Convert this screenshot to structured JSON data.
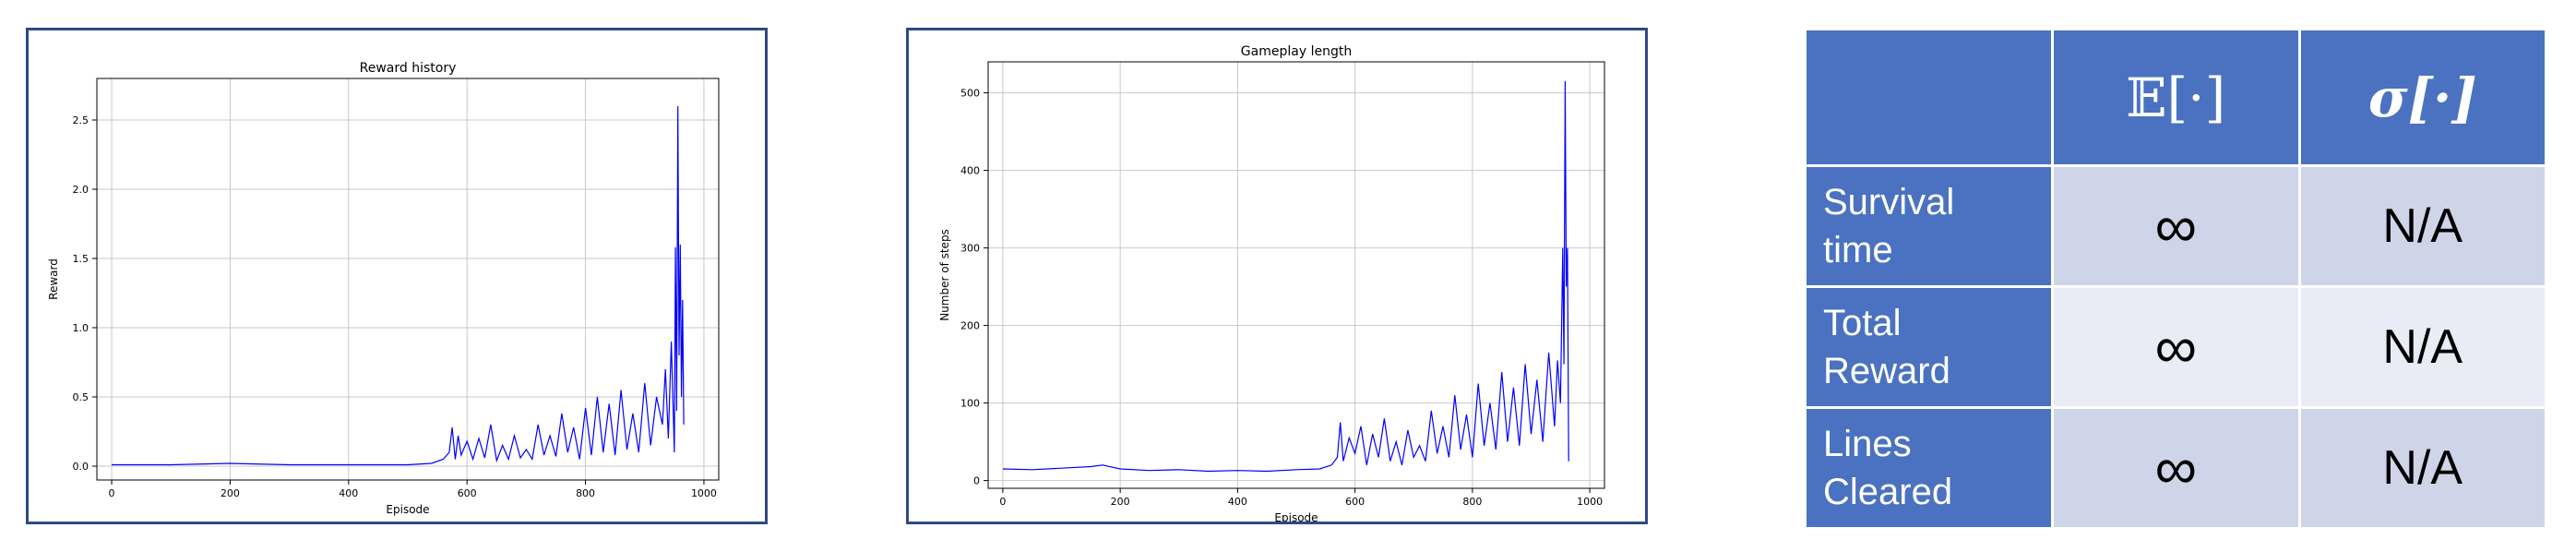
{
  "chart_data": [
    {
      "type": "line",
      "title": "Reward history",
      "xlabel": "Episode",
      "ylabel": "Reward",
      "xlim": [
        -25,
        1025
      ],
      "ylim": [
        -0.1,
        2.8
      ],
      "xticks": [
        0,
        200,
        400,
        600,
        800,
        1000
      ],
      "yticks": [
        0.0,
        0.5,
        1.0,
        1.5,
        2.0,
        2.5
      ],
      "xtick_labels": [
        "0",
        "200",
        "400",
        "600",
        "800",
        "1000"
      ],
      "ytick_labels": [
        "0.0",
        "0.5",
        "1.0",
        "1.5",
        "2.0",
        "2.5"
      ],
      "grid": true,
      "series_color": "#0000ff",
      "x": [
        0,
        100,
        200,
        300,
        400,
        500,
        540,
        560,
        570,
        575,
        580,
        585,
        590,
        600,
        610,
        620,
        630,
        640,
        650,
        660,
        670,
        680,
        690,
        700,
        710,
        720,
        730,
        740,
        750,
        760,
        770,
        780,
        790,
        800,
        810,
        820,
        830,
        840,
        850,
        860,
        870,
        880,
        890,
        900,
        910,
        920,
        930,
        935,
        940,
        945,
        950,
        952,
        954,
        956,
        958,
        960,
        962,
        964,
        966
      ],
      "y": [
        0.01,
        0.01,
        0.02,
        0.01,
        0.01,
        0.01,
        0.02,
        0.05,
        0.1,
        0.28,
        0.05,
        0.22,
        0.08,
        0.18,
        0.05,
        0.2,
        0.06,
        0.3,
        0.04,
        0.15,
        0.05,
        0.22,
        0.06,
        0.12,
        0.05,
        0.3,
        0.08,
        0.22,
        0.07,
        0.38,
        0.1,
        0.28,
        0.05,
        0.42,
        0.08,
        0.5,
        0.1,
        0.45,
        0.08,
        0.55,
        0.12,
        0.38,
        0.1,
        0.6,
        0.15,
        0.5,
        0.3,
        0.7,
        0.2,
        0.9,
        0.1,
        1.58,
        0.4,
        2.6,
        0.8,
        1.6,
        0.5,
        1.2,
        0.3
      ]
    },
    {
      "type": "line",
      "title": "Gameplay length",
      "xlabel": "Episode",
      "ylabel": "Number of steps",
      "xlim": [
        -25,
        1025
      ],
      "ylim": [
        -10,
        540
      ],
      "xticks": [
        0,
        200,
        400,
        600,
        800,
        1000
      ],
      "yticks": [
        0,
        100,
        200,
        300,
        400,
        500
      ],
      "xtick_labels": [
        "0",
        "200",
        "400",
        "600",
        "800",
        "1000"
      ],
      "ytick_labels": [
        "0",
        "100",
        "200",
        "300",
        "400",
        "500"
      ],
      "grid": true,
      "series_color": "#0000ff",
      "x": [
        0,
        50,
        100,
        150,
        170,
        200,
        250,
        300,
        350,
        400,
        450,
        500,
        540,
        560,
        570,
        575,
        580,
        590,
        600,
        610,
        620,
        630,
        640,
        650,
        660,
        670,
        680,
        690,
        700,
        710,
        720,
        730,
        740,
        750,
        760,
        770,
        780,
        790,
        800,
        810,
        820,
        830,
        840,
        850,
        860,
        870,
        880,
        890,
        900,
        910,
        920,
        930,
        940,
        945,
        950,
        954,
        956,
        958,
        960,
        962,
        964
      ],
      "y": [
        15,
        14,
        16,
        18,
        20,
        15,
        13,
        14,
        12,
        13,
        12,
        14,
        15,
        20,
        30,
        75,
        25,
        55,
        35,
        70,
        20,
        60,
        30,
        80,
        25,
        50,
        20,
        65,
        30,
        45,
        25,
        90,
        35,
        70,
        30,
        110,
        40,
        85,
        30,
        125,
        45,
        100,
        40,
        140,
        50,
        120,
        45,
        150,
        60,
        130,
        50,
        165,
        70,
        155,
        100,
        300,
        150,
        515,
        250,
        300,
        25
      ]
    }
  ],
  "table": {
    "header": [
      "",
      "𝔼[·]",
      "σ[·]"
    ],
    "rows": [
      {
        "label_lines": [
          "Survival",
          "time"
        ],
        "expectation": "∞",
        "std": "N/A"
      },
      {
        "label_lines": [
          "Total",
          "Reward"
        ],
        "expectation": "∞",
        "std": "N/A"
      },
      {
        "label_lines": [
          "Lines",
          "Cleared"
        ],
        "expectation": "∞",
        "std": "N/A"
      }
    ],
    "colors": {
      "header": "#4a72c0",
      "row_odd": "#cfd5e8",
      "row_even": "#e9ebf5"
    }
  }
}
